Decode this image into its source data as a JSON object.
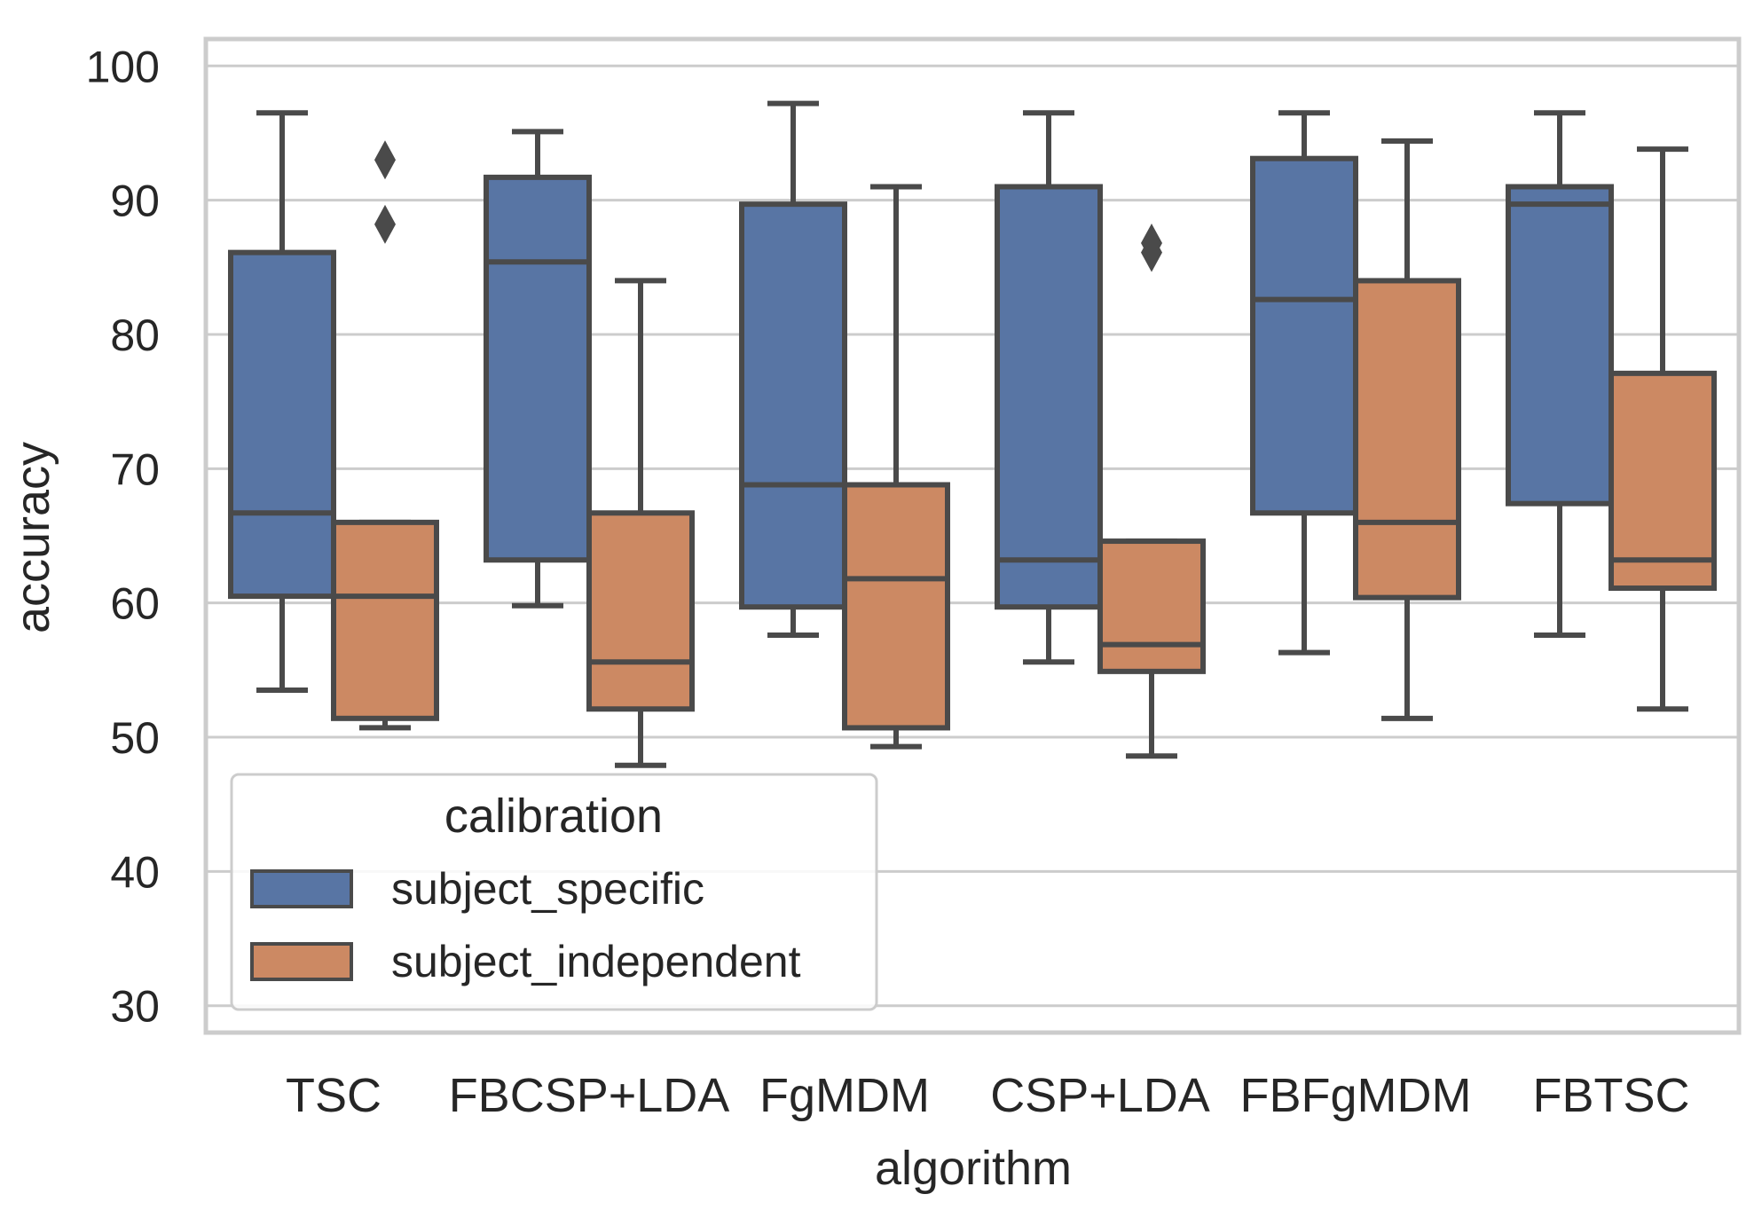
{
  "chart_data": {
    "type": "boxplot",
    "xlabel": "algorithm",
    "ylabel": "accuracy",
    "ylim": [
      28,
      102
    ],
    "yticks": [
      30,
      40,
      50,
      60,
      70,
      80,
      90,
      100
    ],
    "ytick_labels": [
      "30",
      "40",
      "50",
      "60",
      "70",
      "80",
      "90",
      "100"
    ],
    "grid": "horizontal",
    "categories": [
      "TSC",
      "FBCSP+LDA",
      "FgMDM",
      "CSP+LDA",
      "FBFgMDM",
      "FBTSC"
    ],
    "legend": {
      "title": "calibration",
      "placement": "lower-left"
    },
    "series": [
      {
        "name": "subject_specific",
        "color": "#5875a4",
        "boxes": [
          {
            "whisker_low": 53.5,
            "q1": 60.5,
            "median": 66.7,
            "q3": 86.1,
            "whisker_high": 96.5,
            "outliers": []
          },
          {
            "whisker_low": 59.8,
            "q1": 63.2,
            "median": 85.4,
            "q3": 91.7,
            "whisker_high": 95.1,
            "outliers": []
          },
          {
            "whisker_low": 57.6,
            "q1": 59.7,
            "median": 68.8,
            "q3": 89.7,
            "whisker_high": 97.2,
            "outliers": []
          },
          {
            "whisker_low": 55.6,
            "q1": 59.7,
            "median": 63.2,
            "q3": 91.0,
            "whisker_high": 96.5,
            "outliers": []
          },
          {
            "whisker_low": 56.3,
            "q1": 66.7,
            "median": 82.6,
            "q3": 93.1,
            "whisker_high": 96.5,
            "outliers": []
          },
          {
            "whisker_low": 57.6,
            "q1": 67.4,
            "median": 89.7,
            "q3": 91.0,
            "whisker_high": 96.5,
            "outliers": []
          }
        ]
      },
      {
        "name": "subject_independent",
        "color": "#cc8963",
        "boxes": [
          {
            "whisker_low": 50.7,
            "q1": 51.4,
            "median": 60.5,
            "q3": 66.0,
            "whisker_high": 66.0,
            "outliers": [
              93.0,
              88.2
            ]
          },
          {
            "whisker_low": 47.9,
            "q1": 52.1,
            "median": 55.6,
            "q3": 66.7,
            "whisker_high": 84.0,
            "outliers": []
          },
          {
            "whisker_low": 49.3,
            "q1": 50.7,
            "median": 61.8,
            "q3": 68.8,
            "whisker_high": 91.0,
            "outliers": []
          },
          {
            "whisker_low": 48.6,
            "q1": 54.9,
            "median": 56.9,
            "q3": 64.6,
            "whisker_high": 64.6,
            "outliers": [
              86.8,
              86.1
            ]
          },
          {
            "whisker_low": 51.4,
            "q1": 60.4,
            "median": 66.0,
            "q3": 84.0,
            "whisker_high": 94.4,
            "outliers": []
          },
          {
            "whisker_low": 52.1,
            "q1": 61.1,
            "median": 63.2,
            "q3": 77.1,
            "whisker_high": 93.8,
            "outliers": []
          }
        ]
      }
    ]
  },
  "style": {
    "edge_color": "#4a4a4a",
    "grid_color": "#cccccc",
    "frame_color": "#cccccc"
  }
}
